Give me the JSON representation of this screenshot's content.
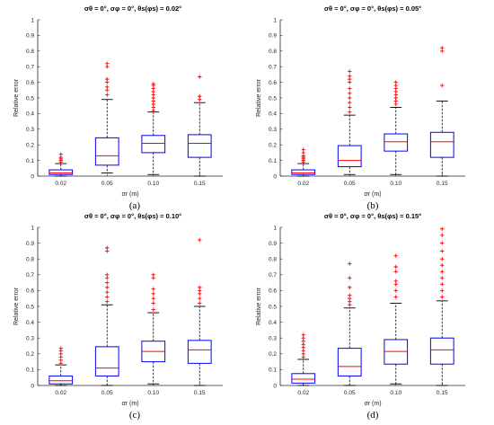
{
  "chart_data": [
    {
      "type": "box",
      "title": "σθ = 0°, σφ = 0°, θs(φs) = 0.02°",
      "caption": "(a)",
      "xlabel": "σr (m)",
      "ylabel": "Relative error",
      "ylim": [
        0,
        1
      ],
      "yticks": [
        "0",
        "0.1",
        "0.2",
        "0.3",
        "0.4",
        "0.5",
        "0.6",
        "0.7",
        "0.8",
        "0.9",
        "1"
      ],
      "categories": [
        "0.02",
        "0.05",
        "0.10",
        "0.15"
      ],
      "boxes": [
        {
          "min": 0.0,
          "q1": 0.01,
          "median": 0.02,
          "q3": 0.04,
          "max": 0.08,
          "outliers": [
            0.09,
            0.1,
            0.11,
            0.12,
            0.14
          ]
        },
        {
          "min": 0.02,
          "q1": 0.07,
          "median": 0.13,
          "q3": 0.245,
          "max": 0.49,
          "outliers": [
            0.52,
            0.55,
            0.57,
            0.6,
            0.62,
            0.7,
            0.72
          ]
        },
        {
          "min": 0.01,
          "q1": 0.15,
          "median": 0.21,
          "q3": 0.26,
          "max": 0.41,
          "outliers": [
            0.42,
            0.44,
            0.46,
            0.48,
            0.5,
            0.52,
            0.54,
            0.56,
            0.58,
            0.59
          ]
        },
        {
          "min": 0.0,
          "q1": 0.12,
          "median": 0.21,
          "q3": 0.265,
          "max": 0.47,
          "outliers": [
            0.49,
            0.51,
            0.635
          ]
        }
      ]
    },
    {
      "type": "box",
      "title": "σθ = 0°, σφ = 0°, θs(φs) = 0.05°",
      "caption": "(b)",
      "xlabel": "σr (m)",
      "ylabel": "Relative error",
      "ylim": [
        0,
        1
      ],
      "yticks": [
        "0",
        "0.1",
        "0.2",
        "0.3",
        "0.4",
        "0.5",
        "0.6",
        "0.7",
        "0.8",
        "0.9",
        "1"
      ],
      "categories": [
        "0.02",
        "0.05",
        "0.10",
        "0.15"
      ],
      "boxes": [
        {
          "min": 0.0,
          "q1": 0.01,
          "median": 0.02,
          "q3": 0.04,
          "max": 0.08,
          "outliers": [
            0.09,
            0.1,
            0.11,
            0.12,
            0.13,
            0.15,
            0.17
          ]
        },
        {
          "min": 0.01,
          "q1": 0.06,
          "median": 0.1,
          "q3": 0.195,
          "max": 0.39,
          "outliers": [
            0.41,
            0.44,
            0.47,
            0.5,
            0.53,
            0.56,
            0.6,
            0.62,
            0.64,
            0.67
          ]
        },
        {
          "min": 0.01,
          "q1": 0.16,
          "median": 0.22,
          "q3": 0.27,
          "max": 0.44,
          "outliers": [
            0.46,
            0.48,
            0.5,
            0.52,
            0.54,
            0.56,
            0.58,
            0.6
          ]
        },
        {
          "min": 0.0,
          "q1": 0.12,
          "median": 0.22,
          "q3": 0.28,
          "max": 0.48,
          "outliers": [
            0.58,
            0.8,
            0.82
          ]
        }
      ]
    },
    {
      "type": "box",
      "title": "σθ = 0°, σφ = 0°, θs(φs) = 0.10°",
      "caption": "(c)",
      "xlabel": "σr (m)",
      "ylabel": "Relative error",
      "ylim": [
        0,
        1
      ],
      "yticks": [
        "0",
        "0.1",
        "0.2",
        "0.3",
        "0.4",
        "0.5",
        "0.6",
        "0.7",
        "0.8",
        "0.9",
        "1"
      ],
      "categories": [
        "0.02",
        "0.05",
        "0.10",
        "0.15"
      ],
      "boxes": [
        {
          "min": 0.0,
          "q1": 0.01,
          "median": 0.03,
          "q3": 0.06,
          "max": 0.13,
          "outliers": [
            0.14,
            0.16,
            0.18,
            0.2,
            0.22,
            0.235
          ]
        },
        {
          "min": 0.0,
          "q1": 0.06,
          "median": 0.11,
          "q3": 0.245,
          "max": 0.51,
          "outliers": [
            0.53,
            0.56,
            0.59,
            0.62,
            0.65,
            0.68,
            0.7,
            0.85,
            0.87
          ]
        },
        {
          "min": 0.01,
          "q1": 0.15,
          "median": 0.215,
          "q3": 0.28,
          "max": 0.46,
          "outliers": [
            0.48,
            0.52,
            0.55,
            0.58,
            0.61,
            0.68,
            0.7
          ]
        },
        {
          "min": 0.0,
          "q1": 0.14,
          "median": 0.225,
          "q3": 0.285,
          "max": 0.5,
          "outliers": [
            0.52,
            0.55,
            0.58,
            0.6,
            0.62,
            0.92
          ]
        }
      ]
    },
    {
      "type": "box",
      "title": "σθ = 0°, σφ = 0°, θs(φs) = 0.15°",
      "caption": "(d)",
      "xlabel": "σr (m)",
      "ylabel": "Relative error",
      "ylim": [
        0,
        1
      ],
      "yticks": [
        "0",
        "0.1",
        "0.2",
        "0.3",
        "0.4",
        "0.5",
        "0.6",
        "0.7",
        "0.8",
        "0.9",
        "1"
      ],
      "categories": [
        "0.02",
        "0.05",
        "0.10",
        "0.15"
      ],
      "boxes": [
        {
          "min": 0.0,
          "q1": 0.015,
          "median": 0.04,
          "q3": 0.075,
          "max": 0.165,
          "outliers": [
            0.18,
            0.2,
            0.22,
            0.24,
            0.26,
            0.28,
            0.3,
            0.32
          ]
        },
        {
          "min": 0.0,
          "q1": 0.06,
          "median": 0.12,
          "q3": 0.235,
          "max": 0.49,
          "outliers": [
            0.51,
            0.53,
            0.55,
            0.57,
            0.62,
            0.68,
            0.77
          ]
        },
        {
          "min": 0.01,
          "q1": 0.135,
          "median": 0.215,
          "q3": 0.29,
          "max": 0.52,
          "outliers": [
            0.56,
            0.6,
            0.64,
            0.66,
            0.72,
            0.75,
            0.82
          ]
        },
        {
          "min": 0.0,
          "q1": 0.135,
          "median": 0.225,
          "q3": 0.3,
          "max": 0.535,
          "outliers": [
            0.56,
            0.6,
            0.64,
            0.68,
            0.72,
            0.76,
            0.8,
            0.85,
            0.9,
            0.95,
            0.99
          ]
        }
      ]
    }
  ],
  "colors": {
    "box": "#0000ff",
    "median": "#ff0000",
    "outlier": "#ff0000",
    "whisker": "#000000",
    "axis": "#262626"
  }
}
